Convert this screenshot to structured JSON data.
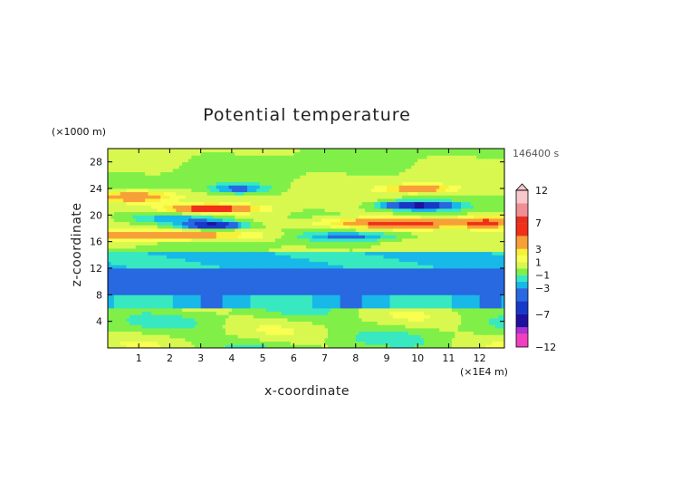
{
  "chart_data": {
    "type": "heatmap",
    "title": "Potential temperature",
    "xlabel": "x-coordinate",
    "ylabel": "z-coordinate",
    "x_unit": "(×1E4 m)",
    "y_unit": "(×1000 m)",
    "timestamp": "146400 s",
    "xlim": [
      0,
      12.8
    ],
    "ylim": [
      0,
      30
    ],
    "x_ticks": [
      "1",
      "2",
      "3",
      "4",
      "5",
      "6",
      "7",
      "8",
      "9",
      "10",
      "11",
      "12"
    ],
    "y_ticks": [
      "4",
      "8",
      "12",
      "16",
      "20",
      "24",
      "28"
    ],
    "colorbar": {
      "range": [
        -12,
        12
      ],
      "labels": [
        "12",
        "7",
        "3",
        "1",
        "−1",
        "−3",
        "−7",
        "−12"
      ],
      "levels": [
        {
          "lo": 10,
          "hi": 12,
          "color": "#f8c8cc"
        },
        {
          "lo": 8,
          "hi": 10,
          "color": "#f09094"
        },
        {
          "lo": 7,
          "hi": 8,
          "color": "#e83020"
        },
        {
          "lo": 5,
          "hi": 7,
          "color": "#f03018"
        },
        {
          "lo": 3,
          "hi": 5,
          "color": "#f8a038"
        },
        {
          "lo": 2,
          "hi": 3,
          "color": "#f8f038"
        },
        {
          "lo": 1,
          "hi": 2,
          "color": "#f8ff50"
        },
        {
          "lo": 0,
          "hi": 1,
          "color": "#d8f850"
        },
        {
          "lo": -1,
          "hi": 0,
          "color": "#80f048"
        },
        {
          "lo": -2,
          "hi": -1,
          "color": "#38e8c0"
        },
        {
          "lo": -3,
          "hi": -2,
          "color": "#18b8e8"
        },
        {
          "lo": -5,
          "hi": -3,
          "color": "#2868e0"
        },
        {
          "lo": -7,
          "hi": -5,
          "color": "#1838c8"
        },
        {
          "lo": -9,
          "hi": -7,
          "color": "#2010a0"
        },
        {
          "lo": -10,
          "hi": -9,
          "color": "#b030d0"
        },
        {
          "lo": -12,
          "hi": -10,
          "color": "#f040c0"
        }
      ]
    },
    "features": [
      {
        "x": [
          0,
          12.8
        ],
        "z": [
          8,
          12
        ],
        "value": -4,
        "description": "uniform cold layer"
      },
      {
        "x": [
          0,
          5
        ],
        "z": [
          16.5,
          17.5
        ],
        "value": 6
      },
      {
        "x": [
          0,
          1.5
        ],
        "z": [
          22,
          24
        ],
        "value": 6
      },
      {
        "x": [
          2,
          4.5
        ],
        "z": [
          20.5,
          21.5
        ],
        "value": 7
      },
      {
        "x": [
          3,
          4
        ],
        "z": [
          18,
          19
        ],
        "value": -8
      },
      {
        "x": [
          6.5,
          12.8
        ],
        "z": [
          18,
          19.5
        ],
        "value": 6
      },
      {
        "x": [
          9.3,
          10.8
        ],
        "z": [
          21,
          22
        ],
        "value": -8
      },
      {
        "x": [
          9.5,
          11
        ],
        "z": [
          23.5,
          24.5
        ],
        "value": 5
      }
    ]
  }
}
